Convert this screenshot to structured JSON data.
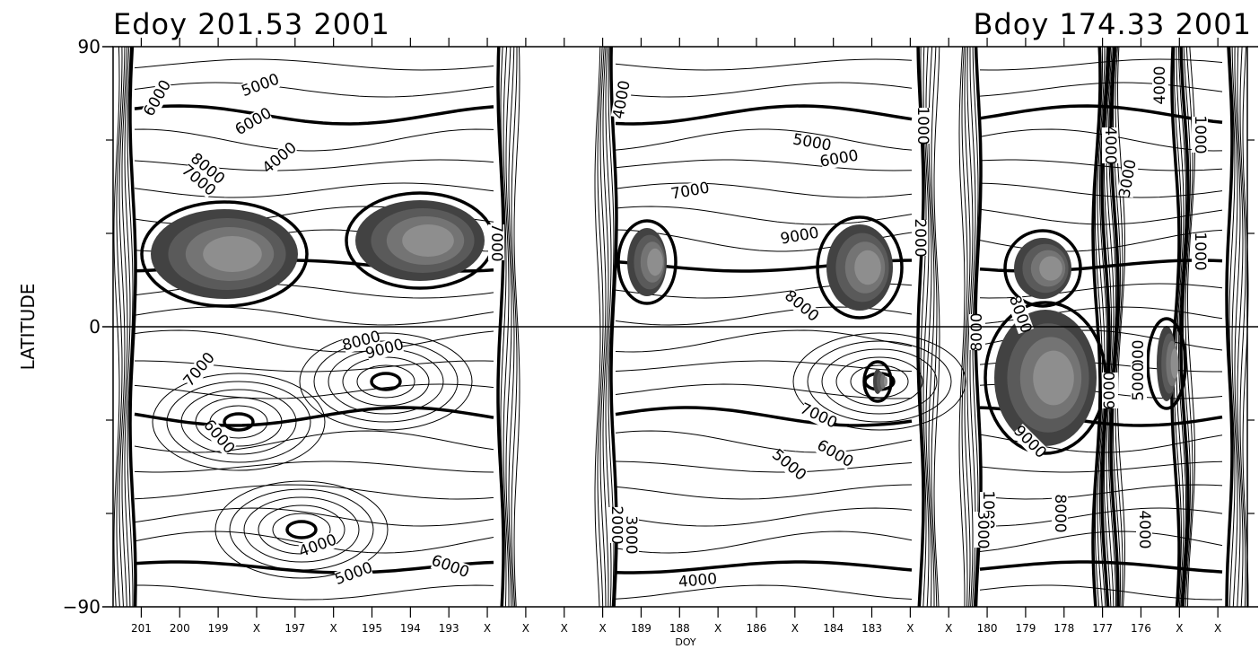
{
  "chart_data": {
    "type": "contour",
    "title_left": "Edoy 201.53 2001",
    "title_right": "Bdoy 174.33 2001",
    "xlabel": "DOY",
    "ylabel": "LATITUDE",
    "ylim": [
      -90,
      90
    ],
    "y_ticks": [
      {
        "value": 90,
        "label": "90"
      },
      {
        "value": 0,
        "label": "0"
      },
      {
        "value": -90,
        "label": "−90"
      }
    ],
    "y_minor_ticks": [
      -60,
      -30,
      30,
      60
    ],
    "x_ticks": [
      "201",
      "200",
      "199",
      "X",
      "197",
      "X",
      "195",
      "194",
      "193",
      "X",
      "X",
      "X",
      "X",
      "189",
      "188",
      "X",
      "186",
      "X",
      "184",
      "183",
      "X",
      "X",
      "180",
      "179",
      "178",
      "177",
      "176",
      "X",
      "X"
    ],
    "zero_line": 0,
    "contour_labels": [
      {
        "text": "5000",
        "x": 292,
        "y": 100,
        "rot": -20
      },
      {
        "text": "6000",
        "x": 180,
        "y": 112,
        "rot": -60
      },
      {
        "text": "6000",
        "x": 285,
        "y": 140,
        "rot": -30
      },
      {
        "text": "4000",
        "x": 315,
        "y": 180,
        "rot": -40
      },
      {
        "text": "7000",
        "x": 218,
        "y": 205,
        "rot": 40
      },
      {
        "text": "8000",
        "x": 228,
        "y": 192,
        "rot": 40
      },
      {
        "text": "7000",
        "x": 548,
        "y": 270,
        "rot": 90
      },
      {
        "text": "8000",
        "x": 404,
        "y": 385,
        "rot": -15
      },
      {
        "text": "9000",
        "x": 430,
        "y": 394,
        "rot": -15
      },
      {
        "text": "7000",
        "x": 226,
        "y": 415,
        "rot": -50
      },
      {
        "text": "6000",
        "x": 240,
        "y": 490,
        "rot": 50
      },
      {
        "text": "4000",
        "x": 356,
        "y": 613,
        "rot": -20
      },
      {
        "text": "5000",
        "x": 396,
        "y": 644,
        "rot": -20
      },
      {
        "text": "6000",
        "x": 500,
        "y": 636,
        "rot": 20
      },
      {
        "text": "4000",
        "x": 698,
        "y": 112,
        "rot": -80
      },
      {
        "text": "5000",
        "x": 904,
        "y": 164,
        "rot": 10
      },
      {
        "text": "6000",
        "x": 936,
        "y": 182,
        "rot": -10
      },
      {
        "text": "7000",
        "x": 770,
        "y": 218,
        "rot": -10
      },
      {
        "text": "9000",
        "x": 892,
        "y": 268,
        "rot": -10
      },
      {
        "text": "8000",
        "x": 890,
        "y": 345,
        "rot": 40
      },
      {
        "text": "2000",
        "x": 1020,
        "y": 265,
        "rot": 90
      },
      {
        "text": "7000",
        "x": 910,
        "y": 468,
        "rot": 25
      },
      {
        "text": "6000",
        "x": 928,
        "y": 510,
        "rot": 30
      },
      {
        "text": "5000",
        "x": 876,
        "y": 522,
        "rot": 40
      },
      {
        "text": "1000",
        "x": 1023,
        "y": 140,
        "rot": 90
      },
      {
        "text": "2000",
        "x": 682,
        "y": 585,
        "rot": 90
      },
      {
        "text": "3000",
        "x": 698,
        "y": 596,
        "rot": 90
      },
      {
        "text": "4000",
        "x": 778,
        "y": 652,
        "rot": -5
      },
      {
        "text": "4000",
        "x": 1232,
        "y": 162,
        "rot": 90
      },
      {
        "text": "3000",
        "x": 1262,
        "y": 200,
        "rot": -80
      },
      {
        "text": "4000",
        "x": 1298,
        "y": 95,
        "rot": -90
      },
      {
        "text": "1000",
        "x": 1332,
        "y": 150,
        "rot": 90
      },
      {
        "text": "1000",
        "x": 1332,
        "y": 280,
        "rot": 90
      },
      {
        "text": "8000",
        "x": 1094,
        "y": 370,
        "rot": -90
      },
      {
        "text": "8000",
        "x": 1132,
        "y": 352,
        "rot": 70
      },
      {
        "text": "6000",
        "x": 1242,
        "y": 435,
        "rot": -90
      },
      {
        "text": "7000",
        "x": 1274,
        "y": 400,
        "rot": -90
      },
      {
        "text": "5000",
        "x": 1274,
        "y": 425,
        "rot": -90
      },
      {
        "text": "9000",
        "x": 1144,
        "y": 496,
        "rot": 45
      },
      {
        "text": "8000",
        "x": 1176,
        "y": 572,
        "rot": 90
      },
      {
        "text": "1000",
        "x": 1096,
        "y": 568,
        "rot": 90
      },
      {
        "text": "3000",
        "x": 1090,
        "y": 590,
        "rot": 90
      },
      {
        "text": "4000",
        "x": 1270,
        "y": 590,
        "rot": 90
      }
    ],
    "filled_blobs": [
      {
        "cx": 250,
        "cy": 283,
        "rx": 82,
        "ry": 50,
        "rot": 0
      },
      {
        "cx": 468,
        "cy": 268,
        "rx": 72,
        "ry": 45,
        "rot": 0
      },
      {
        "cx": 721,
        "cy": 292,
        "rx": 22,
        "ry": 38,
        "rot": 0
      },
      {
        "cx": 958,
        "cy": 298,
        "rx": 37,
        "ry": 48,
        "rot": 0
      },
      {
        "cx": 1162,
        "cy": 299,
        "rx": 32,
        "ry": 34,
        "rot": 0
      },
      {
        "cx": 1165,
        "cy": 421,
        "rx": 57,
        "ry": 76,
        "rot": 0
      },
      {
        "cx": 1300,
        "cy": 405,
        "rx": 11,
        "ry": 42,
        "rot": 0
      },
      {
        "cx": 978,
        "cy": 425,
        "rx": 5,
        "ry": 14,
        "rot": 0
      }
    ]
  }
}
